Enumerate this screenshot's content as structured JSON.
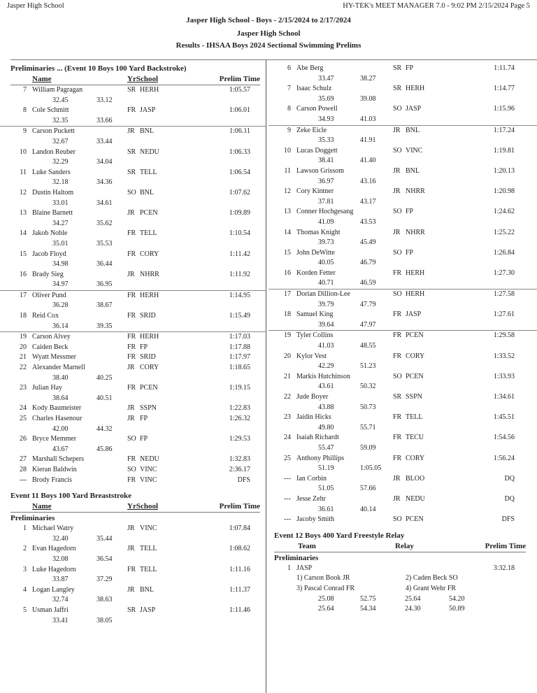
{
  "header": {
    "left": "Jasper High School",
    "right": "HY-TEK's MEET MANAGER 7.0 - 9:02 PM  2/15/2024  Page 5",
    "title": "Jasper High School - Boys - 2/15/2024 to 2/17/2024",
    "subtitle": "Jasper High School",
    "results_title": "Results - IHSAA Boys 2024 Sectional Swimming Prelims"
  },
  "event10": {
    "heading": "Preliminaries ...  (Event 10  Boys 100 Yard Backstroke)",
    "columns": {
      "name": "Name",
      "yrschool": "YrSchool",
      "time": "Prelim Time"
    },
    "entries": [
      {
        "place": "7",
        "name": "William Pagragan",
        "yr": "SR",
        "school": "HERH",
        "time": "1:05.57",
        "splits": [
          "32.45",
          "33.12"
        ]
      },
      {
        "place": "8",
        "name": "Cole Schmitt",
        "yr": "FR",
        "school": "JASP",
        "time": "1:06.01",
        "splits": [
          "32.35",
          "33.66"
        ]
      },
      {
        "place": "9",
        "name": "Carson Puckett",
        "yr": "JR",
        "school": "BNL",
        "time": "1:06.11",
        "splits": [
          "32.67",
          "33.44"
        ]
      },
      {
        "place": "10",
        "name": "Landon Reuber",
        "yr": "SR",
        "school": "NEDU",
        "time": "1:06.33",
        "splits": [
          "32.29",
          "34.04"
        ]
      },
      {
        "place": "11",
        "name": "Luke Sanders",
        "yr": "SR",
        "school": "TELL",
        "time": "1:06.54",
        "splits": [
          "32.18",
          "34.36"
        ]
      },
      {
        "place": "12",
        "name": "Dustin Haltom",
        "yr": "SO",
        "school": "BNL",
        "time": "1:07.62",
        "splits": [
          "33.01",
          "34.61"
        ]
      },
      {
        "place": "13",
        "name": "Blaine Barnett",
        "yr": "JR",
        "school": "PCEN",
        "time": "1:09.89",
        "splits": [
          "34.27",
          "35.62"
        ]
      },
      {
        "place": "14",
        "name": "Jakob Noble",
        "yr": "FR",
        "school": "TELL",
        "time": "1:10.54",
        "splits": [
          "35.01",
          "35.53"
        ]
      },
      {
        "place": "15",
        "name": "Jacob Floyd",
        "yr": "FR",
        "school": "CORY",
        "time": "1:11.42",
        "splits": [
          "34.98",
          "36.44"
        ]
      },
      {
        "place": "16",
        "name": "Brady Sieg",
        "yr": "JR",
        "school": "NHRR",
        "time": "1:11.92",
        "splits": [
          "34.97",
          "36.95"
        ]
      },
      {
        "place": "17",
        "name": "Oliver Pund",
        "yr": "FR",
        "school": "HERH",
        "time": "1:14.95",
        "splits": [
          "36.28",
          "38.67"
        ]
      },
      {
        "place": "18",
        "name": "Reid Cox",
        "yr": "FR",
        "school": "SRID",
        "time": "1:15.49",
        "splits": [
          "36.14",
          "39.35"
        ]
      },
      {
        "place": "19",
        "name": "Carson Alvey",
        "yr": "FR",
        "school": "HERH",
        "time": "1:17.03",
        "splits": []
      },
      {
        "place": "20",
        "name": "Caiden Beck",
        "yr": "FR",
        "school": "FP",
        "time": "1:17.88",
        "splits": []
      },
      {
        "place": "21",
        "name": "Wyatt Messmer",
        "yr": "FR",
        "school": "SRID",
        "time": "1:17.97",
        "splits": []
      },
      {
        "place": "22",
        "name": "Alexander Marnell",
        "yr": "JR",
        "school": "CORY",
        "time": "1:18.65",
        "splits": [
          "38.40",
          "40.25"
        ]
      },
      {
        "place": "23",
        "name": "Julian Hay",
        "yr": "FR",
        "school": "PCEN",
        "time": "1:19.15",
        "splits": [
          "38.64",
          "40.51"
        ]
      },
      {
        "place": "24",
        "name": "Kody Baumeister",
        "yr": "JR",
        "school": "SSPN",
        "time": "1:22.83",
        "splits": []
      },
      {
        "place": "25",
        "name": "Charles Hasenour",
        "yr": "JR",
        "school": "FP",
        "time": "1:26.32",
        "splits": [
          "42.00",
          "44.32"
        ]
      },
      {
        "place": "26",
        "name": "Bryce Memmer",
        "yr": "SO",
        "school": "FP",
        "time": "1:29.53",
        "splits": [
          "43.67",
          "45.86"
        ]
      },
      {
        "place": "27",
        "name": "Marshall Schepers",
        "yr": "FR",
        "school": "NEDU",
        "time": "1:32.83",
        "splits": []
      },
      {
        "place": "28",
        "name": "Kieran Baldwin",
        "yr": "SO",
        "school": "VINC",
        "time": "2:36.17",
        "splits": []
      },
      {
        "place": "---",
        "name": "Brody Francis",
        "yr": "FR",
        "school": "VINC",
        "time": "DFS",
        "splits": []
      }
    ]
  },
  "event11": {
    "heading": "Event 11  Boys 100 Yard Breaststroke",
    "columns": {
      "name": "Name",
      "yrschool": "YrSchool",
      "time": "Prelim Time"
    },
    "round": "Preliminaries",
    "entries_left": [
      {
        "place": "1",
        "name": "Michael Watry",
        "yr": "JR",
        "school": "VINC",
        "time": "1:07.84",
        "splits": [
          "32.40",
          "35.44"
        ]
      },
      {
        "place": "2",
        "name": "Evan Hagedorn",
        "yr": "JR",
        "school": "TELL",
        "time": "1:08.62",
        "splits": [
          "32.08",
          "36.54"
        ]
      },
      {
        "place": "3",
        "name": "Luke Hagedorn",
        "yr": "FR",
        "school": "TELL",
        "time": "1:11.16",
        "splits": [
          "33.87",
          "37.29"
        ]
      },
      {
        "place": "4",
        "name": "Logan Langley",
        "yr": "JR",
        "school": "BNL",
        "time": "1:11.37",
        "splits": [
          "32.74",
          "38.63"
        ]
      },
      {
        "place": "5",
        "name": "Usman Jaffri",
        "yr": "SR",
        "school": "JASP",
        "time": "1:11.46",
        "splits": [
          "33.41",
          "38.05"
        ]
      }
    ],
    "entries_right": [
      {
        "place": "6",
        "name": "Abe Berg",
        "yr": "SR",
        "school": "FP",
        "time": "1:11.74",
        "splits": [
          "33.47",
          "38.27"
        ]
      },
      {
        "place": "7",
        "name": "Isaac Schulz",
        "yr": "SR",
        "school": "HERH",
        "time": "1:14.77",
        "splits": [
          "35.69",
          "39.08"
        ]
      },
      {
        "place": "8",
        "name": "Carson Powell",
        "yr": "SO",
        "school": "JASP",
        "time": "1:15.96",
        "splits": [
          "34.93",
          "41.03"
        ]
      },
      {
        "place": "9",
        "name": "Zeke Eicle",
        "yr": "JR",
        "school": "BNL",
        "time": "1:17.24",
        "splits": [
          "35.33",
          "41.91"
        ]
      },
      {
        "place": "10",
        "name": "Lucas Doggett",
        "yr": "SO",
        "school": "VINC",
        "time": "1:19.81",
        "splits": [
          "38.41",
          "41.40"
        ]
      },
      {
        "place": "11",
        "name": "Lawson Grissom",
        "yr": "JR",
        "school": "BNL",
        "time": "1:20.13",
        "splits": [
          "36.97",
          "43.16"
        ]
      },
      {
        "place": "12",
        "name": "Cory Kintner",
        "yr": "JR",
        "school": "NHRR",
        "time": "1:20.98",
        "splits": [
          "37.81",
          "43.17"
        ]
      },
      {
        "place": "13",
        "name": "Conner Hochgesang",
        "yr": "SO",
        "school": "FP",
        "time": "1:24.62",
        "splits": [
          "41.09",
          "43.53"
        ]
      },
      {
        "place": "14",
        "name": "Thomas Knight",
        "yr": "JR",
        "school": "NHRR",
        "time": "1:25.22",
        "splits": [
          "39.73",
          "45.49"
        ]
      },
      {
        "place": "15",
        "name": "John DeWitte",
        "yr": "SO",
        "school": "FP",
        "time": "1:26.84",
        "splits": [
          "40.05",
          "46.79"
        ]
      },
      {
        "place": "16",
        "name": "Korden Fetter",
        "yr": "FR",
        "school": "HERH",
        "time": "1:27.30",
        "splits": [
          "40.71",
          "46.59"
        ]
      },
      {
        "place": "17",
        "name": "Dorian Dillion-Lee",
        "yr": "SO",
        "school": "HERH",
        "time": "1:27.58",
        "splits": [
          "39.79",
          "47.79"
        ]
      },
      {
        "place": "18",
        "name": "Samuel King",
        "yr": "FR",
        "school": "JASP",
        "time": "1:27.61",
        "splits": [
          "39.64",
          "47.97"
        ]
      },
      {
        "place": "19",
        "name": "Tyler Collins",
        "yr": "FR",
        "school": "PCEN",
        "time": "1:29.58",
        "splits": [
          "41.03",
          "48.55"
        ]
      },
      {
        "place": "20",
        "name": "Kylor Vest",
        "yr": "FR",
        "school": "CORY",
        "time": "1:33.52",
        "splits": [
          "42.29",
          "51.23"
        ]
      },
      {
        "place": "21",
        "name": "Markis Hutchinson",
        "yr": "SO",
        "school": "PCEN",
        "time": "1:33.93",
        "splits": [
          "43.61",
          "50.32"
        ]
      },
      {
        "place": "22",
        "name": "Jude Boyer",
        "yr": "SR",
        "school": "SSPN",
        "time": "1:34.61",
        "splits": [
          "43.88",
          "50.73"
        ]
      },
      {
        "place": "23",
        "name": "Jaidin Hicks",
        "yr": "FR",
        "school": "TELL",
        "time": "1:45.51",
        "splits": [
          "49.80",
          "55.71"
        ]
      },
      {
        "place": "24",
        "name": "Isaiah Richardt",
        "yr": "FR",
        "school": "TECU",
        "time": "1:54.56",
        "splits": [
          "55.47",
          "59.09"
        ]
      },
      {
        "place": "25",
        "name": "Anthony Phillips",
        "yr": "FR",
        "school": "CORY",
        "time": "1:56.24",
        "splits": [
          "51.19",
          "1:05.05"
        ]
      },
      {
        "place": "---",
        "name": "Ian Corbin",
        "yr": "JR",
        "school": "BLOO",
        "time": "DQ",
        "splits": [
          "51.05",
          "57.66"
        ]
      },
      {
        "place": "---",
        "name": "Jesse Zehr",
        "yr": "JR",
        "school": "NEDU",
        "time": "DQ",
        "splits": [
          "36.61",
          "40.14"
        ]
      },
      {
        "place": "---",
        "name": "Jacoby Smith",
        "yr": "SO",
        "school": "PCEN",
        "time": "DFS",
        "splits": []
      }
    ]
  },
  "event12": {
    "heading": "Event 12  Boys 400 Yard Freestyle Relay",
    "columns": {
      "team": "Team",
      "relay": "Relay",
      "time": "Prelim Time"
    },
    "round": "Preliminaries",
    "entries": [
      {
        "place": "1",
        "team": "JASP",
        "time": "3:32.18",
        "swimmers": [
          "1) Carson Book JR",
          "2) Caden Beck SO",
          "3) Pascal Conrad FR",
          "4) Grant Wehr FR"
        ],
        "splits": [
          [
            "25.08",
            "52.75",
            "25.64",
            "54.20"
          ],
          [
            "25.64",
            "54.34",
            "24.30",
            "50.89"
          ]
        ]
      }
    ]
  }
}
